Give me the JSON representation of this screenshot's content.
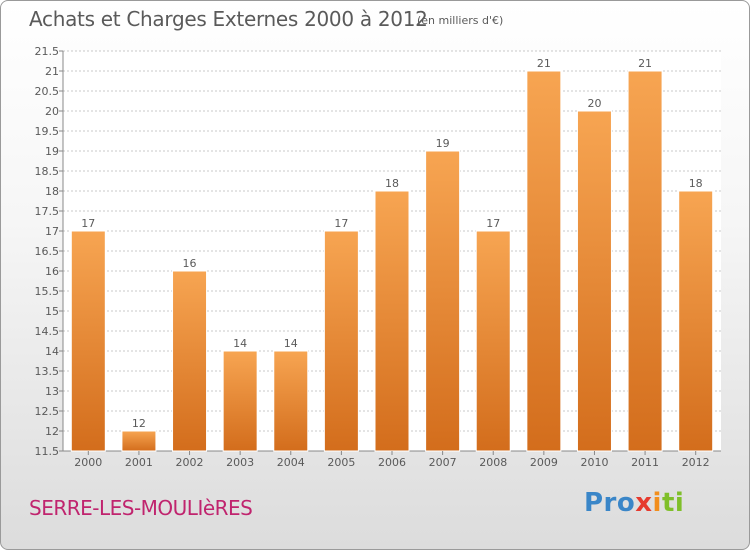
{
  "header": {
    "title": "Achats et Charges Externes 2000 à 2012",
    "unit": "(en milliers d'€)"
  },
  "footer": {
    "commune": "SERRE-LES-MOULIèRES",
    "brand": [
      "Pro",
      "x",
      "i",
      "ti"
    ]
  },
  "colors": {
    "bar_top": "#f7a552",
    "bar_bottom": "#d36d1c",
    "commune": "#c0246e",
    "text": "#5a5a5a",
    "grid": "#c8c8c8"
  },
  "chart_data": {
    "type": "bar",
    "categories": [
      "2000",
      "2001",
      "2002",
      "2003",
      "2004",
      "2005",
      "2006",
      "2007",
      "2008",
      "2009",
      "2010",
      "2011",
      "2012"
    ],
    "values": [
      17,
      12,
      16,
      14,
      14,
      17,
      18,
      19,
      17,
      21,
      20,
      21,
      18
    ],
    "data_labels": [
      "17",
      "12",
      "16",
      "14",
      "14",
      "17",
      "18",
      "19",
      "17",
      "21",
      "20",
      "21",
      "18"
    ],
    "yticks": [
      "11.5",
      "12",
      "12.5",
      "13",
      "13.5",
      "14",
      "14.5",
      "15",
      "15.5",
      "16",
      "16.5",
      "17",
      "17.5",
      "18",
      "18.5",
      "19",
      "19.5",
      "20",
      "20.5",
      "21",
      "21.5"
    ],
    "ylim": [
      11.5,
      21.5
    ],
    "grid": true,
    "legend": "none"
  }
}
